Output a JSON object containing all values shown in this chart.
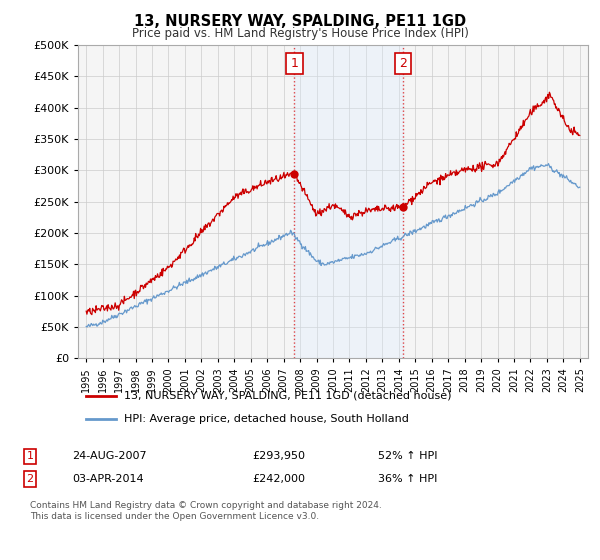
{
  "title": "13, NURSERY WAY, SPALDING, PE11 1GD",
  "subtitle": "Price paid vs. HM Land Registry's House Price Index (HPI)",
  "footer": "Contains HM Land Registry data © Crown copyright and database right 2024.\nThis data is licensed under the Open Government Licence v3.0.",
  "legend_line1": "13, NURSERY WAY, SPALDING, PE11 1GD (detached house)",
  "legend_line2": "HPI: Average price, detached house, South Holland",
  "ann1_num": "1",
  "ann1_date": "24-AUG-2007",
  "ann1_price": "£293,950",
  "ann1_pct": "52% ↑ HPI",
  "ann2_num": "2",
  "ann2_date": "03-APR-2014",
  "ann2_price": "£242,000",
  "ann2_pct": "36% ↑ HPI",
  "price_color": "#cc0000",
  "hpi_color": "#6699cc",
  "shaded_color": "#ddeeff",
  "grid_color": "#cccccc",
  "background_plot": "#f5f5f5",
  "background_fig": "#ffffff",
  "ylim": [
    0,
    500000
  ],
  "yticks": [
    0,
    50000,
    100000,
    150000,
    200000,
    250000,
    300000,
    350000,
    400000,
    450000,
    500000
  ],
  "sale1_x": 2007.65,
  "sale1_y": 293950,
  "sale2_x": 2014.25,
  "sale2_y": 242000,
  "vline1_x": 2007.65,
  "vline2_x": 2014.25,
  "xlim_min": 1994.5,
  "xlim_max": 2025.5
}
